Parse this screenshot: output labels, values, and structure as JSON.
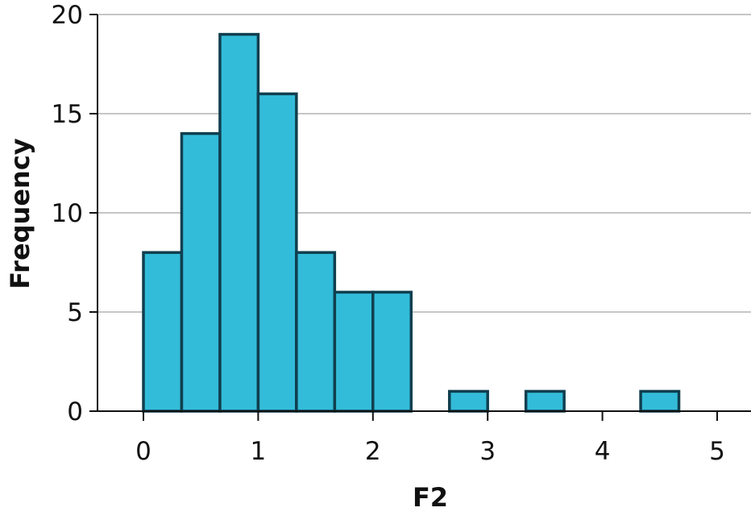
{
  "chart_data": {
    "type": "bar",
    "title": "",
    "xlabel": "F2",
    "ylabel": "Frequency",
    "xlim": [
      0,
      5
    ],
    "ylim": [
      0,
      20
    ],
    "xticks": [
      0,
      1,
      2,
      3,
      4,
      5
    ],
    "yticks": [
      0,
      5,
      10,
      15,
      20
    ],
    "grid": "horizontal",
    "bin_width": 0.3333,
    "bins": [
      {
        "start": 0.0,
        "end": 0.3333,
        "count": 8
      },
      {
        "start": 0.3333,
        "end": 0.6667,
        "count": 14
      },
      {
        "start": 0.6667,
        "end": 1.0,
        "count": 19
      },
      {
        "start": 1.0,
        "end": 1.3333,
        "count": 16
      },
      {
        "start": 1.3333,
        "end": 1.6667,
        "count": 8
      },
      {
        "start": 1.6667,
        "end": 2.0,
        "count": 6
      },
      {
        "start": 2.0,
        "end": 2.3333,
        "count": 6
      },
      {
        "start": 2.3333,
        "end": 2.6667,
        "count": 0
      },
      {
        "start": 2.6667,
        "end": 3.0,
        "count": 1
      },
      {
        "start": 3.0,
        "end": 3.3333,
        "count": 0
      },
      {
        "start": 3.3333,
        "end": 3.6667,
        "count": 1
      },
      {
        "start": 3.6667,
        "end": 4.0,
        "count": 0
      },
      {
        "start": 4.0,
        "end": 4.3333,
        "count": 0
      },
      {
        "start": 4.3333,
        "end": 4.6667,
        "count": 1
      }
    ],
    "colors": {
      "bar_fill": "#33bcd9",
      "bar_stroke": "#103f4f",
      "grid": "#b3b3b3",
      "axis": "#111111"
    }
  }
}
